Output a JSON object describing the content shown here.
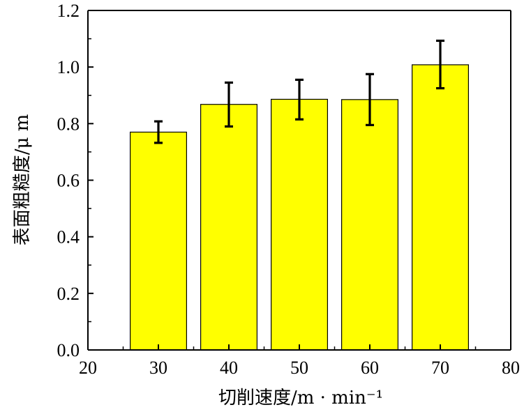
{
  "chart_data": {
    "type": "bar",
    "x": [
      30,
      40,
      50,
      60,
      70
    ],
    "values": [
      0.77,
      0.868,
      0.886,
      0.885,
      1.008
    ],
    "errors": [
      {
        "low": 0.732,
        "high": 0.808
      },
      {
        "low": 0.79,
        "high": 0.945
      },
      {
        "low": 0.815,
        "high": 0.955
      },
      {
        "low": 0.795,
        "high": 0.975
      },
      {
        "low": 0.925,
        "high": 1.093
      }
    ],
    "xlabel": "切削速度/m · min⁻¹",
    "ylabel": "表面粗糙度/μ m",
    "xlim": [
      20,
      80
    ],
    "ylim": [
      0,
      1.2
    ],
    "xticks": [
      "20",
      "30",
      "40",
      "50",
      "60",
      "70",
      "80"
    ],
    "yticks": [
      "0.0",
      "0.2",
      "0.4",
      "0.6",
      "0.8",
      "1.0",
      "1.2"
    ],
    "bar_width": 8,
    "bar_color": "#ffff00",
    "grid": false
  }
}
